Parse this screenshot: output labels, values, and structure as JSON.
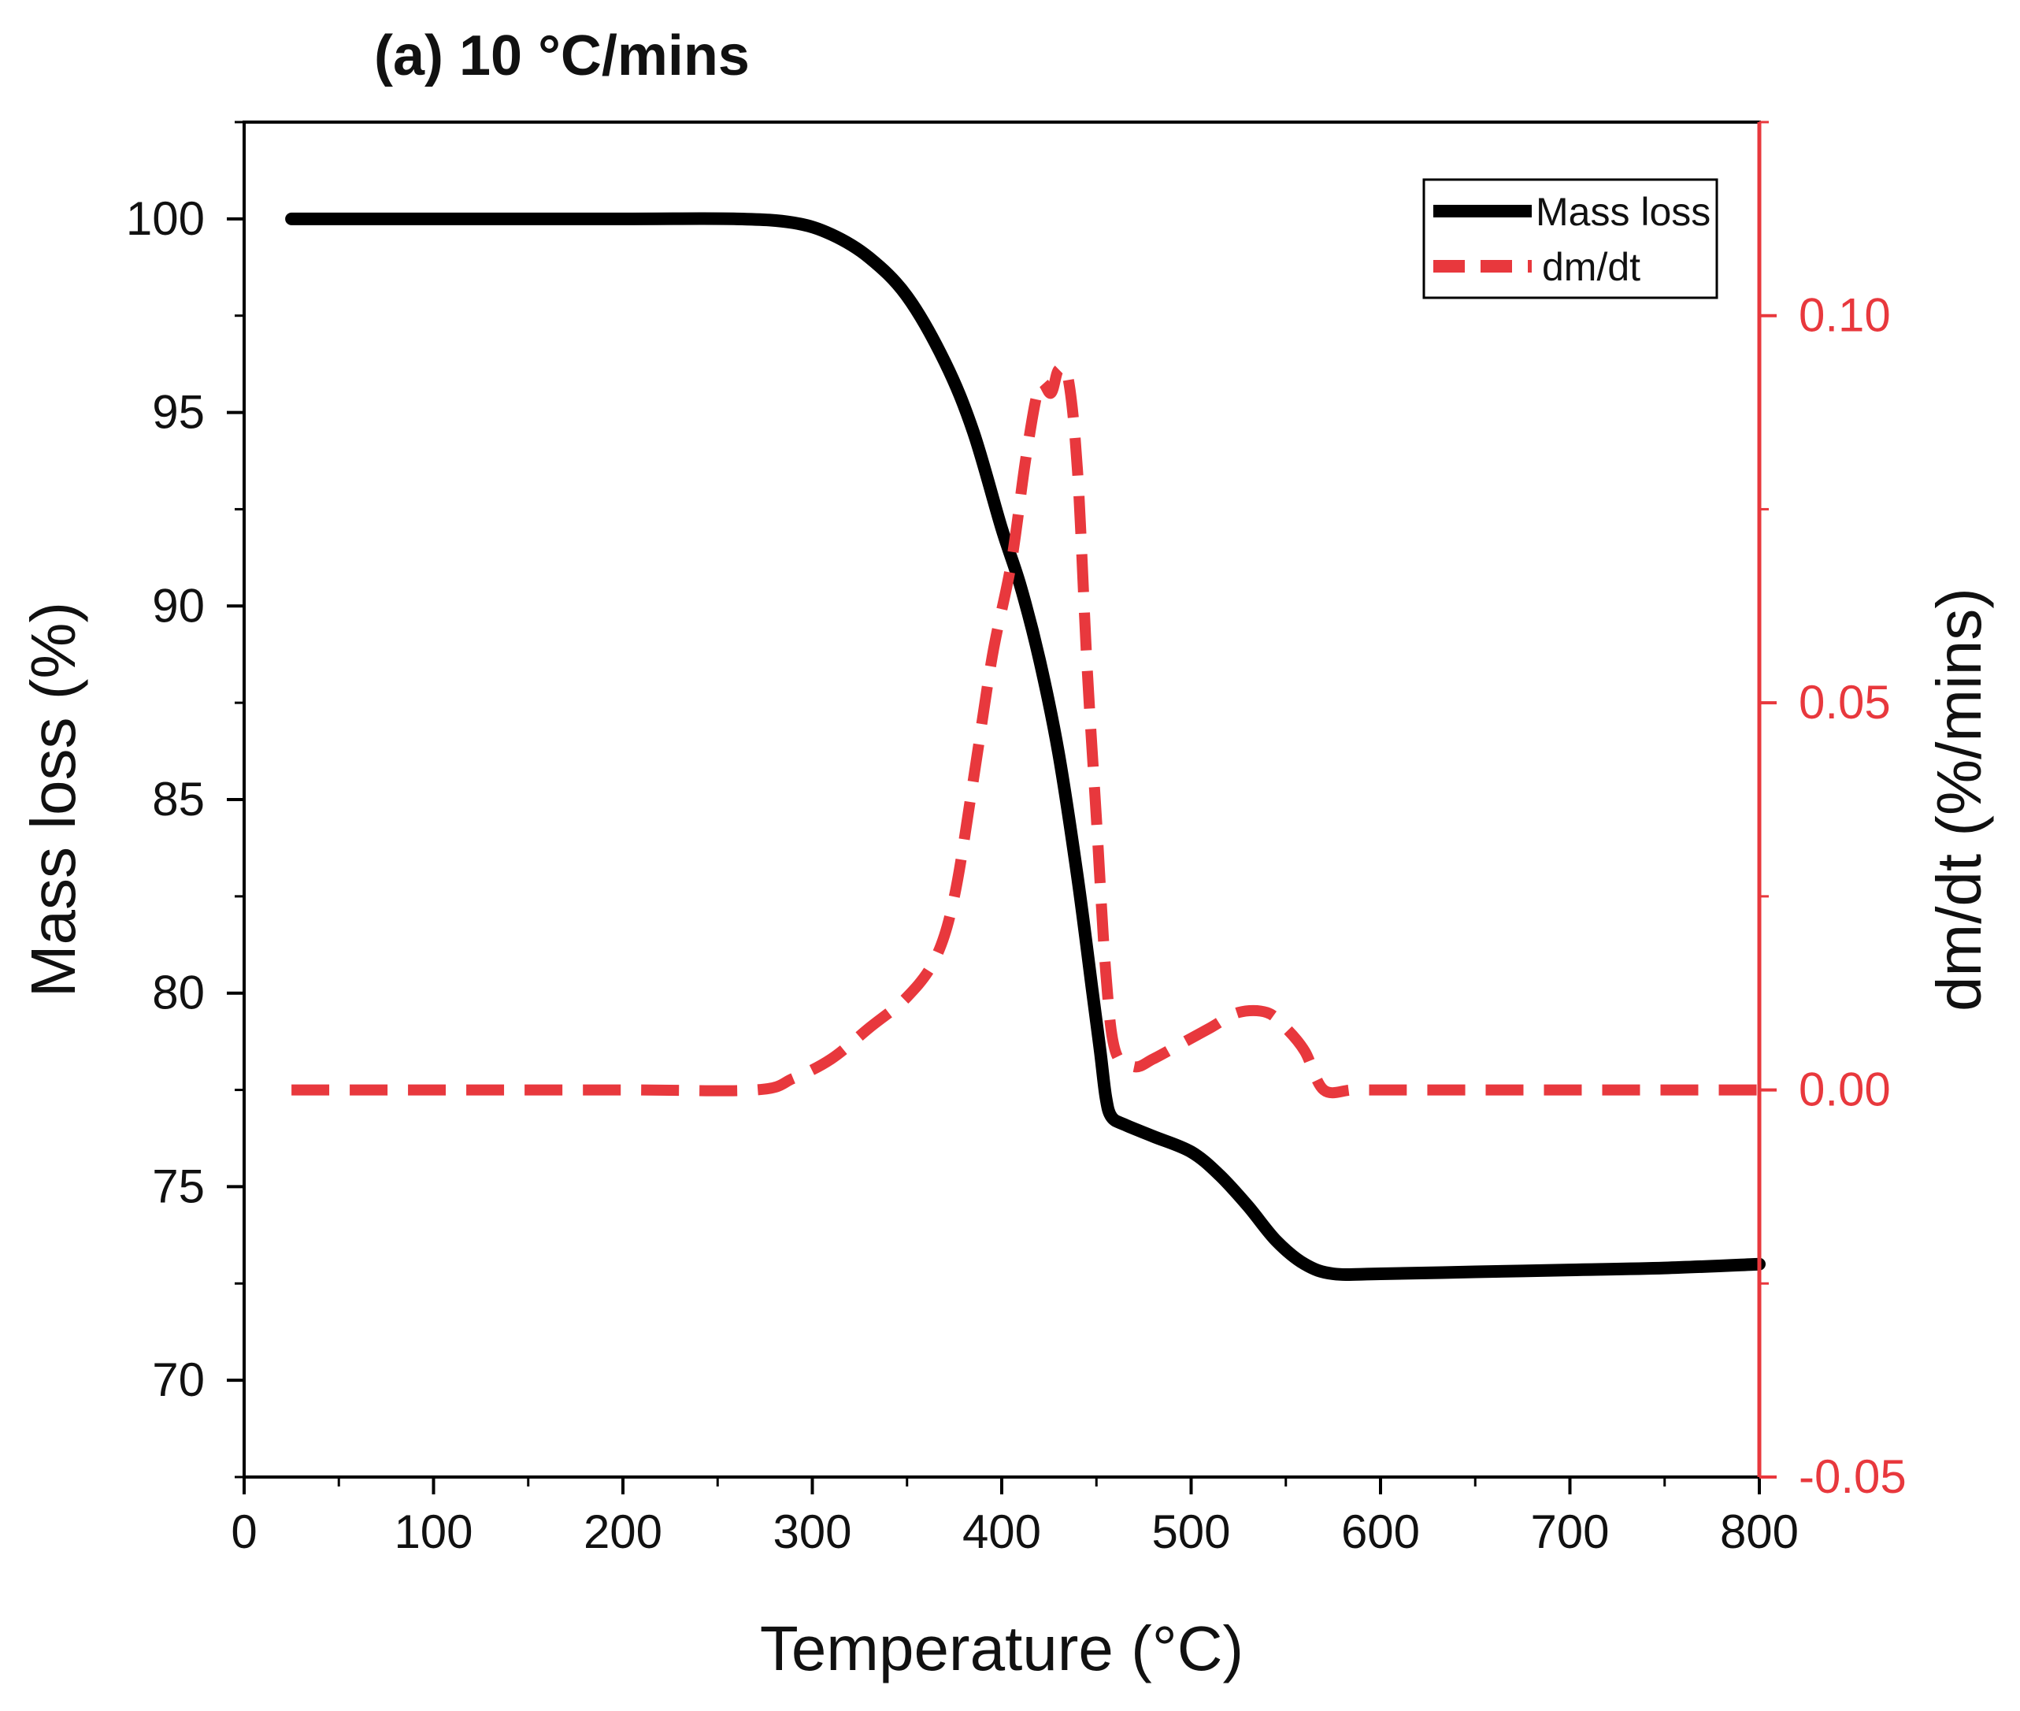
{
  "chart_data": {
    "type": "line",
    "title": "(a) 10 °C/mins",
    "xlabel": "Temperature (°C)",
    "ylabel_left": "Mass loss (%)",
    "ylabel_right": "dm/dt (%/mins)",
    "xlim": [
      0,
      800
    ],
    "ylim_left": [
      67.5,
      102.5
    ],
    "ylim_right": [
      -0.05,
      0.125
    ],
    "x_ticks": [
      0,
      100,
      200,
      300,
      400,
      500,
      600,
      700,
      800
    ],
    "x_tick_labels": [
      "0",
      "100",
      "200",
      "300",
      "400",
      "500",
      "600",
      "700",
      "800"
    ],
    "y_left_ticks": [
      70,
      75,
      80,
      85,
      90,
      95,
      100
    ],
    "y_left_tick_labels": [
      "70",
      "75",
      "80",
      "85",
      "90",
      "95",
      "100"
    ],
    "y_right_ticks": [
      -0.05,
      0.0,
      0.05,
      0.1
    ],
    "y_right_tick_labels": [
      "-0.05",
      "0.00",
      "0.05",
      "0.10"
    ],
    "grid": false,
    "legend_position": "top-right",
    "colors": {
      "mass": "#000000",
      "dmdt": "#e8383d",
      "right_axis": "#e8383d"
    },
    "series": [
      {
        "name": "Mass loss",
        "axis": "left",
        "style": "solid",
        "x": [
          25,
          100,
          200,
          260,
          290,
          310,
          330,
          350,
          370,
          385,
          400,
          410,
          420,
          430,
          440,
          448,
          452,
          455,
          458,
          465,
          480,
          500,
          515,
          530,
          545,
          560,
          575,
          600,
          650,
          700,
          750,
          800
        ],
        "y": [
          100,
          100,
          100,
          100,
          99.9,
          99.6,
          99.0,
          98.0,
          96.3,
          94.5,
          92.0,
          90.5,
          88.6,
          86.2,
          83.0,
          80.0,
          78.5,
          77.3,
          76.8,
          76.6,
          76.3,
          75.9,
          75.3,
          74.5,
          73.6,
          73.0,
          72.75,
          72.75,
          72.8,
          72.85,
          72.9,
          73.0
        ]
      },
      {
        "name": "dm/dt",
        "axis": "right",
        "style": "dashed",
        "x": [
          25,
          50,
          100,
          200,
          270,
          290,
          310,
          330,
          350,
          365,
          375,
          385,
          395,
          405,
          413,
          420,
          426,
          430,
          435,
          440,
          445,
          450,
          455,
          460,
          470,
          480,
          495,
          510,
          525,
          540,
          550,
          560,
          570,
          585,
          600,
          650,
          700,
          750,
          800
        ],
        "y": [
          0.0,
          0.0,
          0.0,
          0.0,
          0.0,
          0.0015,
          0.004,
          0.008,
          0.012,
          0.017,
          0.025,
          0.04,
          0.056,
          0.068,
          0.082,
          0.091,
          0.09,
          0.093,
          0.092,
          0.08,
          0.055,
          0.035,
          0.015,
          0.005,
          0.003,
          0.004,
          0.006,
          0.008,
          0.01,
          0.01,
          0.008,
          0.005,
          0.0,
          0.0,
          0.0,
          0.0,
          0.0,
          0.0,
          0.0
        ]
      }
    ]
  }
}
